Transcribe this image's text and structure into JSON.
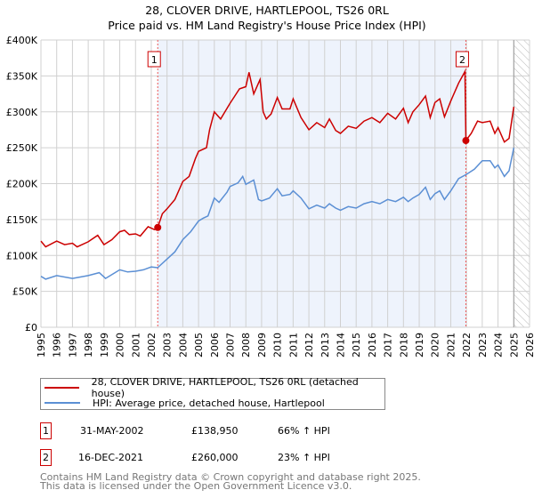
{
  "title": "28, CLOVER DRIVE, HARTLEPOOL, TS26 0RL",
  "subtitle": "Price paid vs. HM Land Registry's House Price Index (HPI)",
  "chart_data": {
    "type": "line",
    "title": "28, CLOVER DRIVE, HARTLEPOOL, TS26 0RL",
    "xlim": [
      1995,
      2026
    ],
    "ylim": [
      0,
      400000
    ],
    "yticks": [
      0,
      50000,
      100000,
      150000,
      200000,
      250000,
      300000,
      350000,
      400000
    ],
    "ytick_labels": [
      "£0",
      "£50K",
      "£100K",
      "£150K",
      "£200K",
      "£250K",
      "£300K",
      "£350K",
      "£400K"
    ],
    "xticks": [
      1995,
      1996,
      1997,
      1998,
      1999,
      2000,
      2001,
      2002,
      2003,
      2004,
      2005,
      2006,
      2007,
      2008,
      2009,
      2010,
      2011,
      2012,
      2013,
      2014,
      2015,
      2016,
      2017,
      2018,
      2019,
      2020,
      2021,
      2022,
      2023,
      2024,
      2025,
      2026
    ],
    "grid": true,
    "shaded_range": [
      2002.41,
      2021.96
    ],
    "hatched_from": 2025.0,
    "series": [
      {
        "name": "28, CLOVER DRIVE, HARTLEPOOL, TS26 0RL (detached house)",
        "color": "#cc0000",
        "x": [
          1995,
          1995.3,
          1996,
          1996.5,
          1997,
          1997.3,
          1998,
          1998.6,
          1999,
          1999.5,
          2000,
          2000.3,
          2000.6,
          2001,
          2001.3,
          2001.8,
          2002.2,
          2002.41,
          2002.7,
          2003,
          2003.5,
          2004,
          2004.4,
          2004.8,
          2005,
          2005.5,
          2005.7,
          2006,
          2006.4,
          2007,
          2007.3,
          2007.6,
          2008,
          2008.2,
          2008.5,
          2008.9,
          2009.1,
          2009.3,
          2009.6,
          2010,
          2010.3,
          2010.8,
          2011,
          2011.5,
          2012,
          2012.5,
          2013,
          2013.3,
          2013.7,
          2014,
          2014.5,
          2015,
          2015.5,
          2016,
          2016.5,
          2017,
          2017.5,
          2018,
          2018.3,
          2018.6,
          2019,
          2019.4,
          2019.7,
          2020,
          2020.3,
          2020.6,
          2021,
          2021.5,
          2021.9,
          2021.96,
          2022.3,
          2022.7,
          2023,
          2023.5,
          2023.8,
          2024,
          2024.4,
          2024.7,
          2025
        ],
        "y": [
          120,
          112,
          120,
          115,
          117,
          112,
          119,
          128,
          115,
          122,
          133,
          135,
          129,
          130,
          127,
          140,
          136,
          138.95,
          158,
          165,
          178,
          203,
          210,
          235,
          245,
          250,
          275,
          300,
          290,
          312,
          322,
          332,
          335,
          355,
          325,
          345,
          300,
          290,
          297,
          320,
          304,
          304,
          318,
          292,
          275,
          285,
          278,
          290,
          274,
          270,
          280,
          277,
          287,
          292,
          285,
          298,
          290,
          305,
          285,
          300,
          310,
          322,
          292,
          313,
          318,
          293,
          315,
          340,
          356,
          260,
          270,
          287,
          285,
          287,
          270,
          278,
          258,
          263,
          307
        ]
      },
      {
        "name": "HPI: Average price, detached house, Hartlepool",
        "color": "#5b8fd4",
        "x": [
          1995,
          1995.3,
          1996,
          1997,
          1998,
          1998.7,
          1999.1,
          2000,
          2000.5,
          2001,
          2001.5,
          2002,
          2002.4,
          2003,
          2003.5,
          2004,
          2004.5,
          2005,
          2005.3,
          2005.6,
          2006,
          2006.3,
          2006.8,
          2007,
          2007.5,
          2007.8,
          2008,
          2008.5,
          2008.8,
          2009,
          2009.5,
          2010,
          2010.3,
          2010.8,
          2011,
          2011.5,
          2012,
          2012.5,
          2013,
          2013.3,
          2013.7,
          2014,
          2014.5,
          2015,
          2015.5,
          2016,
          2016.5,
          2017,
          2017.5,
          2018,
          2018.3,
          2018.6,
          2019,
          2019.4,
          2019.7,
          2020,
          2020.3,
          2020.6,
          2021,
          2021.5,
          2022,
          2022.5,
          2023,
          2023.5,
          2023.8,
          2024,
          2024.4,
          2024.7,
          2025
        ],
        "y": [
          71,
          67,
          72,
          68,
          72,
          76,
          68,
          80,
          77,
          78,
          80,
          84,
          83,
          95,
          105,
          122,
          133,
          148,
          152,
          155,
          180,
          174,
          188,
          196,
          201,
          210,
          199,
          205,
          178,
          176,
          180,
          193,
          183,
          185,
          190,
          180,
          165,
          170,
          166,
          172,
          166,
          163,
          168,
          166,
          172,
          175,
          172,
          178,
          175,
          181,
          175,
          180,
          185,
          195,
          178,
          186,
          190,
          178,
          190,
          207,
          213,
          220,
          232,
          232,
          222,
          226,
          210,
          218,
          250
        ]
      }
    ],
    "y_unit_multiplier": 1000,
    "annotations": [
      {
        "label": "1",
        "x": 2002.41,
        "y": 138950
      },
      {
        "label": "2",
        "x": 2021.96,
        "y": 260000
      }
    ]
  },
  "legend": {
    "items": [
      "28, CLOVER DRIVE, HARTLEPOOL, TS26 0RL (detached house)",
      "HPI: Average price, detached house, Hartlepool"
    ]
  },
  "transactions": [
    {
      "num": "1",
      "date": "31-MAY-2002",
      "price": "£138,950",
      "hpi": "66% ↑ HPI"
    },
    {
      "num": "2",
      "date": "16-DEC-2021",
      "price": "£260,000",
      "hpi": "23% ↑ HPI"
    }
  ],
  "footer": {
    "line1": "Contains HM Land Registry data © Crown copyright and database right 2025.",
    "line2": "This data is licensed under the Open Government Licence v3.0."
  }
}
